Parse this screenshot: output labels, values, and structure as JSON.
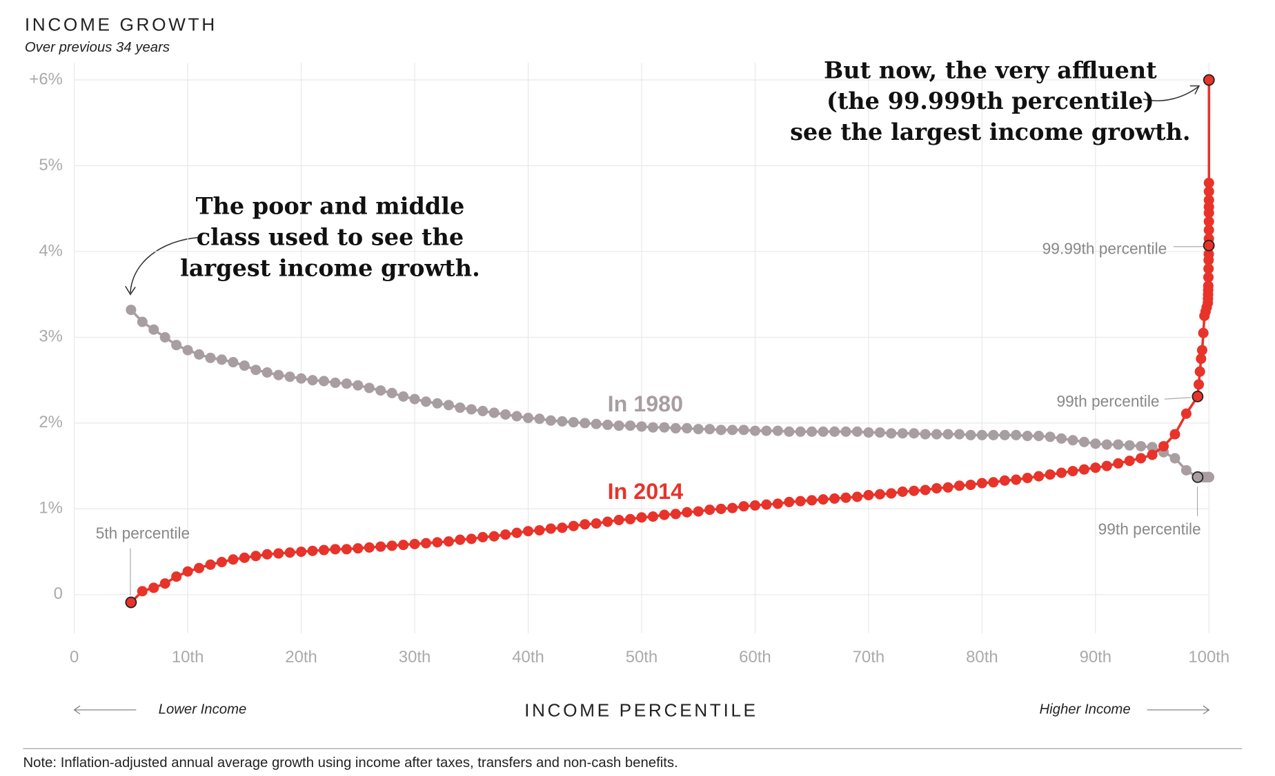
{
  "chart_data": {
    "type": "scatter-line",
    "title": "INCOME GROWTH",
    "subtitle": "Over previous 34 years",
    "x_label": "INCOME PERCENTILE",
    "x_left_label": "Lower Income",
    "x_right_label": "Higher Income",
    "note": "Note: Inflation-adjusted annual average growth using income after taxes, transfers and non-cash benefits.",
    "xlim": [
      0,
      100
    ],
    "ylim": [
      -0.45,
      6.2
    ],
    "xticks": [
      0,
      {
        "value": 10,
        "label": "10th"
      },
      {
        "value": 20,
        "label": "20th"
      },
      {
        "value": 30,
        "label": "30th"
      },
      {
        "value": 40,
        "label": "40th"
      },
      {
        "value": 50,
        "label": "50th"
      },
      {
        "value": 60,
        "label": "60th"
      },
      {
        "value": 70,
        "label": "70th"
      },
      {
        "value": 80,
        "label": "80th"
      },
      {
        "value": 90,
        "label": "90th"
      },
      {
        "value": 100,
        "label": "100th"
      }
    ],
    "yticks": [
      0,
      {
        "value": 1,
        "label": "1%"
      },
      {
        "value": 2,
        "label": "2%"
      },
      {
        "value": 3,
        "label": "3%"
      },
      {
        "value": 4,
        "label": "4%"
      },
      {
        "value": 5,
        "label": "5%"
      },
      {
        "value": 6,
        "label": "+6%"
      }
    ],
    "grid": true,
    "x": [
      5,
      6,
      7,
      8,
      9,
      10,
      11,
      12,
      13,
      14,
      15,
      16,
      17,
      18,
      19,
      20,
      21,
      22,
      23,
      24,
      25,
      26,
      27,
      28,
      29,
      30,
      31,
      32,
      33,
      34,
      35,
      36,
      37,
      38,
      39,
      40,
      41,
      42,
      43,
      44,
      45,
      46,
      47,
      48,
      49,
      50,
      51,
      52,
      53,
      54,
      55,
      56,
      57,
      58,
      59,
      60,
      61,
      62,
      63,
      64,
      65,
      66,
      67,
      68,
      69,
      70,
      71,
      72,
      73,
      74,
      75,
      76,
      77,
      78,
      79,
      80,
      81,
      82,
      83,
      84,
      85,
      86,
      87,
      88,
      89,
      90,
      91,
      92,
      93,
      94,
      95,
      96,
      97,
      98,
      99,
      99.1,
      99.2,
      99.3,
      99.4,
      99.5,
      99.6,
      99.7,
      99.8,
      99.9,
      99.91,
      99.92,
      99.93,
      99.94,
      99.95,
      99.96,
      99.97,
      99.98,
      99.99,
      99.991,
      99.992,
      99.993,
      99.994,
      99.995,
      99.996,
      99.997,
      99.998,
      99.999
    ],
    "series": [
      {
        "name": "In 1980",
        "color": "#a89ea2",
        "values": [
          3.32,
          3.18,
          3.09,
          3.0,
          2.91,
          2.85,
          2.8,
          2.76,
          2.74,
          2.71,
          2.67,
          2.62,
          2.59,
          2.56,
          2.54,
          2.52,
          2.5,
          2.49,
          2.47,
          2.46,
          2.44,
          2.41,
          2.38,
          2.35,
          2.31,
          2.28,
          2.25,
          2.23,
          2.21,
          2.18,
          2.16,
          2.14,
          2.12,
          2.1,
          2.08,
          2.06,
          2.05,
          2.03,
          2.02,
          2.01,
          2.0,
          1.99,
          1.98,
          1.97,
          1.97,
          1.96,
          1.95,
          1.95,
          1.94,
          1.94,
          1.93,
          1.93,
          1.92,
          1.92,
          1.92,
          1.91,
          1.91,
          1.91,
          1.9,
          1.9,
          1.9,
          1.9,
          1.9,
          1.9,
          1.9,
          1.89,
          1.89,
          1.88,
          1.88,
          1.88,
          1.87,
          1.87,
          1.87,
          1.87,
          1.86,
          1.86,
          1.86,
          1.86,
          1.86,
          1.85,
          1.85,
          1.84,
          1.82,
          1.8,
          1.78,
          1.76,
          1.75,
          1.75,
          1.74,
          1.73,
          1.72,
          1.66,
          1.59,
          1.45,
          1.37,
          1.37,
          1.37,
          1.37,
          1.37,
          1.37,
          1.37,
          1.37,
          1.37,
          1.37,
          1.37,
          1.37,
          1.37,
          1.37,
          1.37,
          1.37,
          1.37,
          1.37,
          1.37,
          1.37,
          1.37,
          1.37,
          1.37,
          1.37,
          1.37,
          1.37,
          1.37,
          1.37
        ]
      },
      {
        "name": "In 2014",
        "color": "#e8332a",
        "values": [
          -0.09,
          0.04,
          0.08,
          0.13,
          0.21,
          0.27,
          0.31,
          0.35,
          0.38,
          0.41,
          0.43,
          0.45,
          0.47,
          0.48,
          0.49,
          0.5,
          0.51,
          0.52,
          0.53,
          0.53,
          0.54,
          0.55,
          0.56,
          0.57,
          0.58,
          0.59,
          0.6,
          0.61,
          0.62,
          0.64,
          0.65,
          0.67,
          0.68,
          0.7,
          0.72,
          0.74,
          0.75,
          0.77,
          0.78,
          0.8,
          0.82,
          0.83,
          0.85,
          0.87,
          0.88,
          0.9,
          0.91,
          0.93,
          0.94,
          0.96,
          0.97,
          0.99,
          1.0,
          1.01,
          1.03,
          1.04,
          1.05,
          1.06,
          1.08,
          1.09,
          1.1,
          1.11,
          1.12,
          1.13,
          1.14,
          1.16,
          1.17,
          1.18,
          1.2,
          1.21,
          1.22,
          1.24,
          1.25,
          1.27,
          1.28,
          1.3,
          1.31,
          1.33,
          1.34,
          1.36,
          1.38,
          1.4,
          1.42,
          1.44,
          1.46,
          1.48,
          1.5,
          1.53,
          1.56,
          1.59,
          1.63,
          1.73,
          1.87,
          2.11,
          2.31,
          2.45,
          2.6,
          2.75,
          2.85,
          3.05,
          3.25,
          3.3,
          3.35,
          3.4,
          3.45,
          3.5,
          3.55,
          3.6,
          3.7,
          3.8,
          3.9,
          3.97,
          4.07,
          4.15,
          4.25,
          4.35,
          4.45,
          4.52,
          4.6,
          4.7,
          4.8,
          6.0
        ]
      }
    ],
    "callouts": [
      "5th percentile",
      "99.99th percentile",
      "99th percentile",
      "99th percentile"
    ],
    "annotations": [
      {
        "lines": [
          "The poor and middle",
          "class used to see the",
          "largest income growth."
        ]
      },
      {
        "lines": [
          "But now, the very affluent",
          "(the 99.999th percentile)",
          "see the largest income growth."
        ]
      }
    ]
  }
}
